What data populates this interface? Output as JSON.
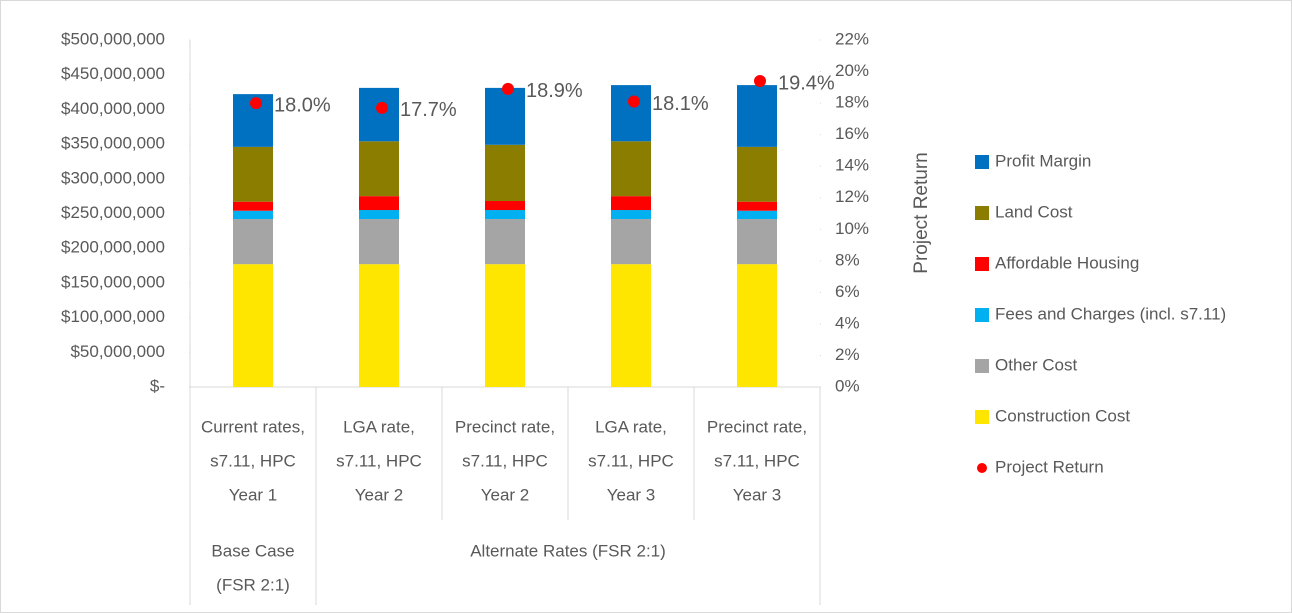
{
  "chart_data": {
    "type": "stacked-bar-with-points",
    "categories": [
      [
        "Current rates,",
        "s7.11, HPC",
        "Year 1"
      ],
      [
        "LGA rate,",
        "s7.11, HPC",
        "Year 2"
      ],
      [
        "Precinct rate,",
        "s7.11, HPC",
        "Year 2"
      ],
      [
        "LGA rate,",
        "s7.11, HPC",
        "Year 3"
      ],
      [
        "Precinct rate,",
        "s7.11, HPC",
        "Year 3"
      ]
    ],
    "category_groups": [
      {
        "label": [
          "Base Case",
          "(FSR 2:1)"
        ],
        "span": 1
      },
      {
        "label": [
          "Alternate Rates (FSR 2:1)"
        ],
        "span": 4
      }
    ],
    "series": [
      {
        "name": "Construction Cost",
        "color": "#ffe600",
        "values": [
          177000000,
          177000000,
          177000000,
          177000000,
          177000000
        ]
      },
      {
        "name": "Other Cost",
        "color": "#a5a5a5",
        "values": [
          65000000,
          65000000,
          65000000,
          65000000,
          65000000
        ]
      },
      {
        "name": "Fees and Charges (incl. s7.11)",
        "color": "#00b0f0",
        "values": [
          12000000,
          13000000,
          13000000,
          13000000,
          12000000
        ]
      },
      {
        "name": "Affordable Housing",
        "color": "#ff0000",
        "values": [
          13000000,
          20000000,
          13000000,
          20000000,
          13000000
        ]
      },
      {
        "name": "Land Cost",
        "color": "#8b7d00",
        "values": [
          79000000,
          79000000,
          81000000,
          79000000,
          79000000
        ]
      },
      {
        "name": "Profit Margin",
        "color": "#0070c0",
        "values": [
          76000000,
          77000000,
          82000000,
          81000000,
          89000000
        ]
      },
      {
        "name": "Project Return",
        "color": "#ff0000",
        "axis": "y2",
        "type": "scatter",
        "values": [
          18.0,
          17.7,
          18.9,
          18.1,
          19.4
        ],
        "value_labels": [
          "18.0%",
          "17.7%",
          "18.9%",
          "18.1%",
          "19.4%"
        ]
      }
    ],
    "y2_label": "Project Return",
    "ylim": [
      0,
      500000000
    ],
    "yticks": [
      {
        "value": 0,
        "label": "$-"
      },
      {
        "value": 50000000,
        "label": "$50,000,000"
      },
      {
        "value": 100000000,
        "label": "$100,000,000"
      },
      {
        "value": 150000000,
        "label": "$150,000,000"
      },
      {
        "value": 200000000,
        "label": "$200,000,000"
      },
      {
        "value": 250000000,
        "label": "$250,000,000"
      },
      {
        "value": 300000000,
        "label": "$300,000,000"
      },
      {
        "value": 350000000,
        "label": "$350,000,000"
      },
      {
        "value": 400000000,
        "label": "$400,000,000"
      },
      {
        "value": 450000000,
        "label": "$450,000,000"
      },
      {
        "value": 500000000,
        "label": "$500,000,000"
      }
    ],
    "y2lim": [
      0,
      22
    ],
    "y2ticks": [
      {
        "value": 0,
        "label": "0%"
      },
      {
        "value": 2,
        "label": "2%"
      },
      {
        "value": 4,
        "label": "4%"
      },
      {
        "value": 6,
        "label": "6%"
      },
      {
        "value": 8,
        "label": "8%"
      },
      {
        "value": 10,
        "label": "10%"
      },
      {
        "value": 12,
        "label": "12%"
      },
      {
        "value": 14,
        "label": "14%"
      },
      {
        "value": 16,
        "label": "16%"
      },
      {
        "value": 18,
        "label": "18%"
      },
      {
        "value": 20,
        "label": "20%"
      },
      {
        "value": 22,
        "label": "22%"
      }
    ],
    "legend": "right"
  }
}
